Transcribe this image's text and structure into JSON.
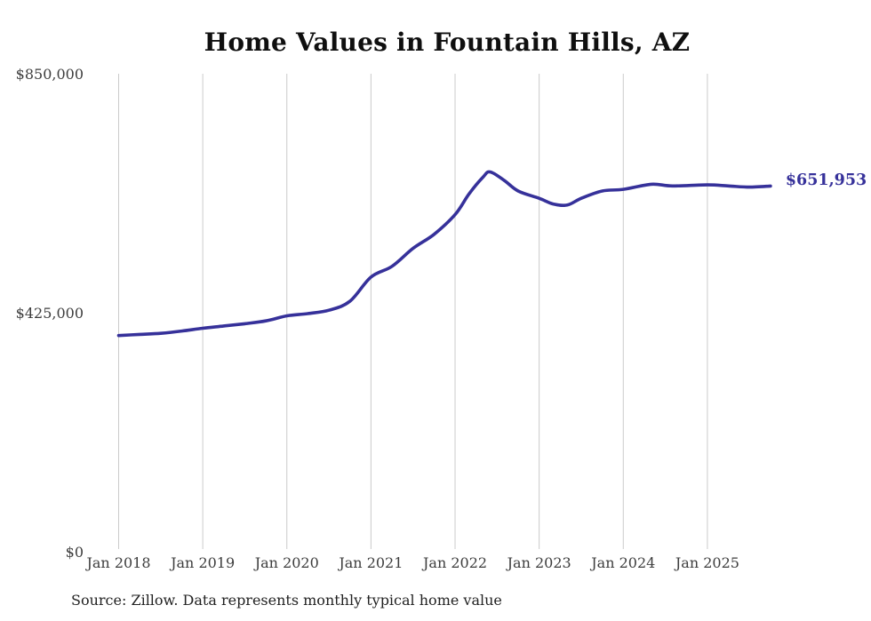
{
  "chart": {
    "source_note": "Source: Zillow. Data represents monthly typical home value",
    "latest_value_label": "$651,953",
    "accent_color": "#36319A",
    "gridline_color": "#cbcbcb",
    "title_color": "#0f0f0f",
    "axis_label_color": "#3d3d3d"
  },
  "chart_data": {
    "type": "line",
    "title": "Home Values in Fountain Hills, AZ",
    "xlabel": "",
    "ylabel": "",
    "ylim": [
      0,
      850000
    ],
    "grid": "vertical-only",
    "legend": "none",
    "end_label": "$651,953",
    "y_ticks": [
      {
        "label": "$0",
        "value": 0
      },
      {
        "label": "$425,000",
        "value": 425000
      },
      {
        "label": "$850,000",
        "value": 850000
      }
    ],
    "x_ticks": [
      {
        "label": "Jan 2018",
        "date": "2018-01"
      },
      {
        "label": "Jan 2019",
        "date": "2019-01"
      },
      {
        "label": "Jan 2020",
        "date": "2020-01"
      },
      {
        "label": "Jan 2021",
        "date": "2021-01"
      },
      {
        "label": "Jan 2022",
        "date": "2022-01"
      },
      {
        "label": "Jan 2023",
        "date": "2023-01"
      },
      {
        "label": "Jan 2024",
        "date": "2024-01"
      },
      {
        "label": "Jan 2025",
        "date": "2025-01"
      }
    ],
    "series": [
      {
        "name": "Monthly typical home value",
        "color": "#36319A",
        "points": [
          {
            "date": "2018-01",
            "value": 386000
          },
          {
            "date": "2018-04",
            "value": 388000
          },
          {
            "date": "2018-07",
            "value": 390000
          },
          {
            "date": "2018-10",
            "value": 394000
          },
          {
            "date": "2019-01",
            "value": 399000
          },
          {
            "date": "2019-04",
            "value": 403000
          },
          {
            "date": "2019-07",
            "value": 407000
          },
          {
            "date": "2019-10",
            "value": 412000
          },
          {
            "date": "2020-01",
            "value": 421000
          },
          {
            "date": "2020-04",
            "value": 425000
          },
          {
            "date": "2020-07",
            "value": 431000
          },
          {
            "date": "2020-10",
            "value": 447000
          },
          {
            "date": "2021-01",
            "value": 490000
          },
          {
            "date": "2021-04",
            "value": 509000
          },
          {
            "date": "2021-07",
            "value": 541000
          },
          {
            "date": "2021-10",
            "value": 566000
          },
          {
            "date": "2022-01",
            "value": 601000
          },
          {
            "date": "2022-03",
            "value": 638000
          },
          {
            "date": "2022-05",
            "value": 668000
          },
          {
            "date": "2022-06",
            "value": 677000
          },
          {
            "date": "2022-08",
            "value": 662000
          },
          {
            "date": "2022-10",
            "value": 643000
          },
          {
            "date": "2023-01",
            "value": 630000
          },
          {
            "date": "2023-03",
            "value": 620000
          },
          {
            "date": "2023-05",
            "value": 618000
          },
          {
            "date": "2023-07",
            "value": 630000
          },
          {
            "date": "2023-10",
            "value": 643000
          },
          {
            "date": "2024-01",
            "value": 646000
          },
          {
            "date": "2024-05",
            "value": 655000
          },
          {
            "date": "2024-08",
            "value": 652000
          },
          {
            "date": "2025-01",
            "value": 654000
          },
          {
            "date": "2025-04",
            "value": 652000
          },
          {
            "date": "2025-07",
            "value": 650000
          },
          {
            "date": "2025-10",
            "value": 651953
          }
        ]
      }
    ]
  }
}
